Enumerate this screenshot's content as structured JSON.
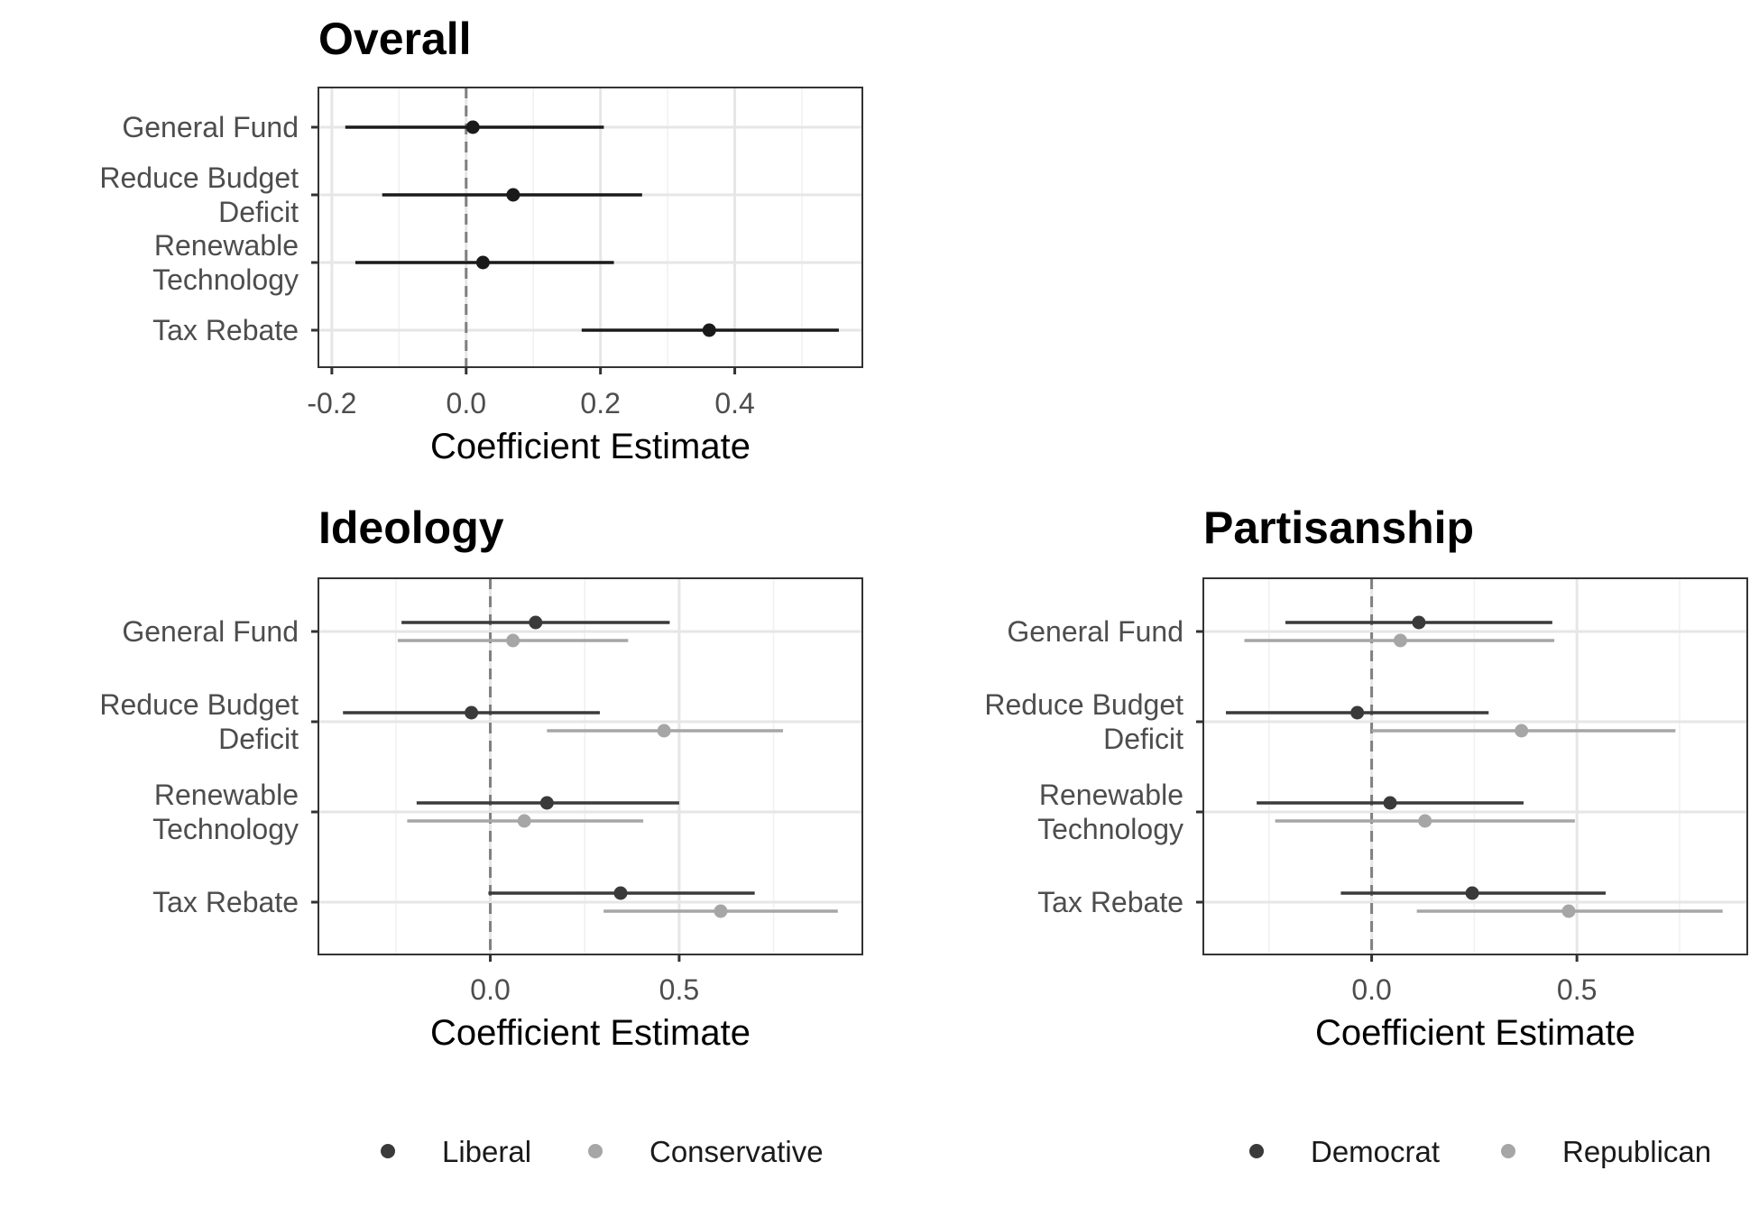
{
  "chart_data": [
    {
      "type": "dot-whisker",
      "title": "Overall",
      "xlabel": "Coefficient Estimate",
      "xlim": [
        -0.22,
        0.59
      ],
      "xticks": [
        "-0.2",
        "0.0",
        "0.2",
        "0.4"
      ],
      "xtick_values": [
        -0.2,
        0.0,
        0.2,
        0.4
      ],
      "xminor": [
        -0.1,
        0.1,
        0.3,
        0.5
      ],
      "reference_line": 0,
      "categories": [
        "General Fund",
        "Reduce Budget Deficit",
        "Renewable Technology",
        "Tax Rebate"
      ],
      "category_lines": [
        [
          "General Fund"
        ],
        [
          "Reduce Budget",
          "Deficit"
        ],
        [
          "Renewable",
          "Technology"
        ],
        [
          "Tax Rebate"
        ]
      ],
      "series": [
        {
          "color": "#1a1a1a",
          "estimates": [
            0.01,
            0.07,
            0.025,
            0.362
          ],
          "lower": [
            -0.18,
            -0.125,
            -0.165,
            0.172
          ],
          "upper": [
            0.205,
            0.262,
            0.22,
            0.555
          ]
        }
      ],
      "legend": []
    },
    {
      "type": "dot-whisker",
      "title": "Ideology",
      "xlabel": "Coefficient Estimate",
      "xlim": [
        -0.455,
        0.985
      ],
      "xticks": [
        "0.0",
        "0.5"
      ],
      "xtick_values": [
        0.0,
        0.5
      ],
      "xminor": [
        -0.25,
        0.25,
        0.75
      ],
      "reference_line": 0,
      "categories": [
        "General Fund",
        "Reduce Budget Deficit",
        "Renewable Technology",
        "Tax Rebate"
      ],
      "category_lines": [
        [
          "General Fund"
        ],
        [
          "Reduce Budget",
          "Deficit"
        ],
        [
          "Renewable",
          "Technology"
        ],
        [
          "Tax Rebate"
        ]
      ],
      "series": [
        {
          "name": "Liberal",
          "color": "#3a3a3a",
          "estimates": [
            0.12,
            -0.05,
            0.15,
            0.345
          ],
          "lower": [
            -0.235,
            -0.39,
            -0.195,
            -0.005
          ],
          "upper": [
            0.475,
            0.29,
            0.5,
            0.7
          ]
        },
        {
          "name": "Conservative",
          "color": "#a6a6a6",
          "estimates": [
            0.06,
            0.46,
            0.09,
            0.61
          ],
          "lower": [
            -0.245,
            0.15,
            -0.22,
            0.3
          ],
          "upper": [
            0.365,
            0.775,
            0.405,
            0.92
          ]
        }
      ],
      "legend": [
        "Liberal",
        "Conservative"
      ],
      "legend_position": "bottom"
    },
    {
      "type": "dot-whisker",
      "title": "Partisanship",
      "xlabel": "Coefficient Estimate",
      "xlim": [
        -0.41,
        0.915
      ],
      "xticks": [
        "0.0",
        "0.5"
      ],
      "xtick_values": [
        0.0,
        0.5
      ],
      "xminor": [
        -0.25,
        0.25,
        0.75
      ],
      "reference_line": 0,
      "categories": [
        "General Fund",
        "Reduce Budget Deficit",
        "Renewable Technology",
        "Tax Rebate"
      ],
      "category_lines": [
        [
          "General Fund"
        ],
        [
          "Reduce Budget",
          "Deficit"
        ],
        [
          "Renewable",
          "Technology"
        ],
        [
          "Tax Rebate"
        ]
      ],
      "series": [
        {
          "name": "Democrat",
          "color": "#3a3a3a",
          "estimates": [
            0.115,
            -0.035,
            0.045,
            0.245
          ],
          "lower": [
            -0.21,
            -0.355,
            -0.28,
            -0.075
          ],
          "upper": [
            0.44,
            0.285,
            0.37,
            0.57
          ]
        },
        {
          "name": "Republican",
          "color": "#a6a6a6",
          "estimates": [
            0.07,
            0.365,
            0.13,
            0.48
          ],
          "lower": [
            -0.31,
            0.0,
            -0.235,
            0.11
          ],
          "upper": [
            0.445,
            0.74,
            0.495,
            0.855
          ]
        }
      ],
      "legend": [
        "Democrat",
        "Republican"
      ],
      "legend_position": "bottom"
    }
  ]
}
